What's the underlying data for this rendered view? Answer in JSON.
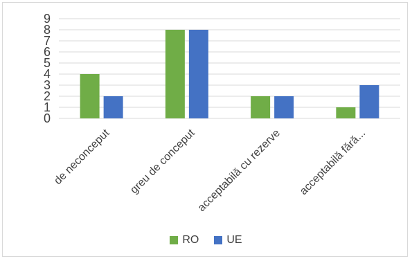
{
  "chart_data": {
    "type": "bar",
    "categories": [
      "de neconceput",
      "greu de conceput",
      "acceptabilă cu rezerve",
      "acceptabilă fără..."
    ],
    "series": [
      {
        "name": "RO",
        "values": [
          4,
          8,
          2,
          1
        ],
        "color": "#70ad47"
      },
      {
        "name": "UE",
        "values": [
          2,
          8,
          2,
          3
        ],
        "color": "#4472c4"
      }
    ],
    "ylim": [
      0,
      9
    ],
    "yticks": [
      "0",
      "1",
      "2",
      "3",
      "4",
      "5",
      "6",
      "7",
      "8",
      "9"
    ],
    "grid": true,
    "legend_position": "bottom"
  }
}
